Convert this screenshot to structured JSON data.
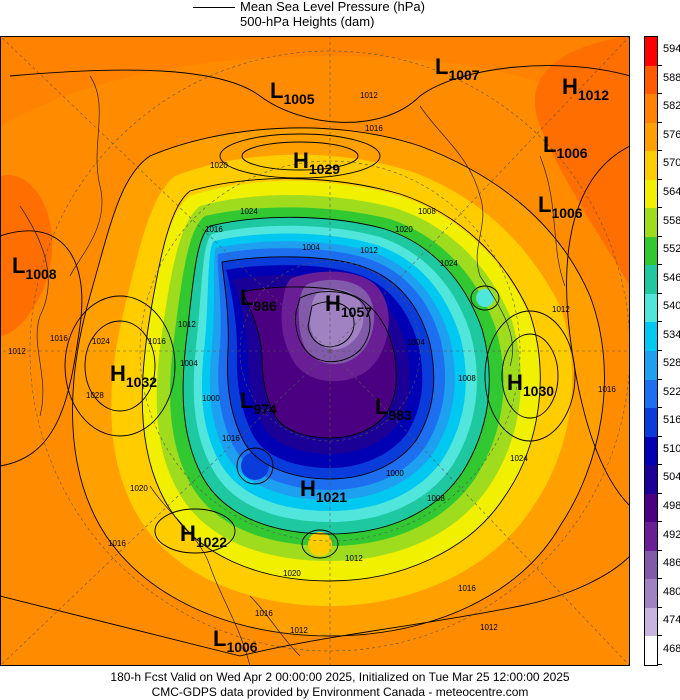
{
  "legend": {
    "line1": "Mean Sea Level Pressure (hPa)",
    "line2": "500-hPa Heights (dam)"
  },
  "footer": {
    "line1": "180-h Fcst Valid on Wed Apr  2 00:00:00 2025, Initialized on Tue Mar 25 12:00:00 2025",
    "line2": "CMC-GDPS data provided by Environment Canada - meteocentre.com"
  },
  "colorbar": {
    "labels": [
      "594",
      "588",
      "582",
      "576",
      "570",
      "564",
      "558",
      "552",
      "546",
      "540",
      "534",
      "528",
      "522",
      "516",
      "510",
      "504",
      "498",
      "492",
      "486",
      "480",
      "474",
      "468"
    ],
    "colors": [
      "#ff0000",
      "#ff5a00",
      "#ff8200",
      "#ffa000",
      "#ffcc00",
      "#f0f000",
      "#a0dc1e",
      "#32c832",
      "#1ec8a0",
      "#50e6dc",
      "#00c8f0",
      "#1ea0f0",
      "#1e6ef0",
      "#0a3cdc",
      "#0000b4",
      "#1a0096",
      "#4b0082",
      "#6a1e96",
      "#825aaa",
      "#a082c3",
      "#c8b4e1",
      "#ffffff"
    ]
  },
  "pressure_systems": [
    {
      "type": "L",
      "value": "1005"
    },
    {
      "type": "L",
      "value": "1007"
    },
    {
      "type": "H",
      "value": "1012"
    },
    {
      "type": "H",
      "value": "1029"
    },
    {
      "type": "L",
      "value": "1006"
    },
    {
      "type": "L",
      "value": "1006"
    },
    {
      "type": "L",
      "value": "1008"
    },
    {
      "type": "L",
      "value": "986"
    },
    {
      "type": "H",
      "value": "1057"
    },
    {
      "type": "H",
      "value": "1032"
    },
    {
      "type": "H",
      "value": "1030"
    },
    {
      "type": "L",
      "value": "974"
    },
    {
      "type": "L",
      "value": "983"
    },
    {
      "type": "H",
      "value": "1021"
    },
    {
      "type": "H",
      "value": "1022"
    },
    {
      "type": "L",
      "value": "1006"
    }
  ],
  "isobar_labels": [
    "1012",
    "1016",
    "1020",
    "1024",
    "1008",
    "1004",
    "1012",
    "1016",
    "1020",
    "1024",
    "1016",
    "1012",
    "1016",
    "1012",
    "1016",
    "1020",
    "1024",
    "1028",
    "1008",
    "1012",
    "1016",
    "1024",
    "1016",
    "1012",
    "1000",
    "1004",
    "1008",
    "1004",
    "1000",
    "1012",
    "1016",
    "1020",
    "1012",
    "1016"
  ]
}
